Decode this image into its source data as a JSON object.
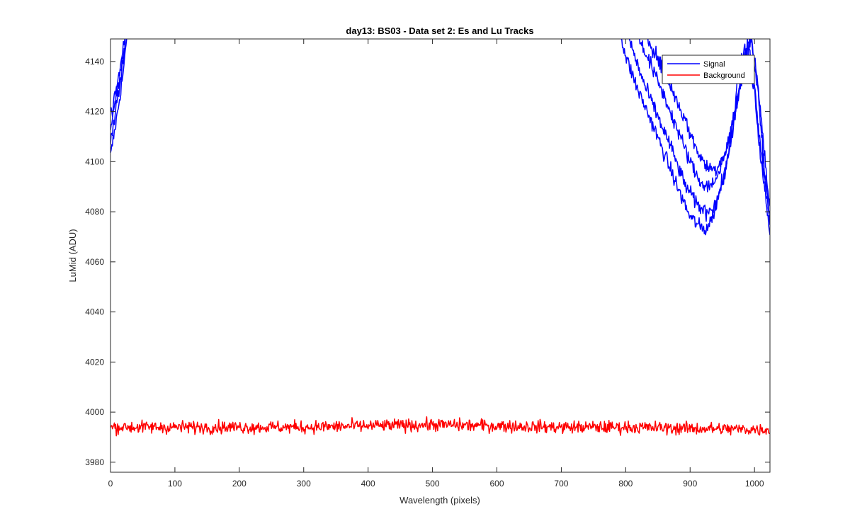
{
  "chart_data": {
    "type": "line",
    "title": "day13: BS03 - Data set 2: Es and Lu Tracks",
    "xlabel": "Wavelength (pixels)",
    "ylabel": "LuMid (ADU)",
    "xlim": [
      0,
      1024
    ],
    "ylim": [
      3976,
      4149
    ],
    "xticks": [
      0,
      100,
      200,
      300,
      400,
      500,
      600,
      700,
      800,
      900,
      1000
    ],
    "yticks": [
      3980,
      4000,
      4020,
      4040,
      4060,
      4080,
      4100,
      4120,
      4140
    ],
    "grid": false,
    "legend_position": "top-right",
    "series": [
      {
        "name": "Signal",
        "color": "#0000ff",
        "noise": 3,
        "tracks": [
          {
            "x": [
              0,
              5,
              10,
              15,
              20,
              25,
              28,
              780,
              800,
              820,
              840,
              860,
              880,
              900,
              915,
              925,
              935,
              950,
              965,
              975,
              985,
              1000,
              1010,
              1024
            ],
            "y": [
              4102,
              4110,
              4118,
              4127,
              4136,
              4148,
              4160,
              4165,
              4142,
              4128,
              4116,
              4103,
              4090,
              4078,
              4074,
              4073,
              4078,
              4092,
              4112,
              4135,
              4145,
              4128,
              4100,
              4072
            ]
          },
          {
            "x": [
              0,
              5,
              10,
              15,
              20,
              25,
              28,
              790,
              810,
              830,
              850,
              870,
              890,
              910,
              925,
              940,
              955,
              970,
              980,
              990,
              1000,
              1010,
              1024
            ],
            "y": [
              4108,
              4116,
              4124,
              4131,
              4140,
              4152,
              4162,
              4165,
              4145,
              4130,
              4118,
              4106,
              4092,
              4083,
              4080,
              4083,
              4096,
              4118,
              4136,
              4148,
              4130,
              4104,
              4076
            ]
          },
          {
            "x": [
              0,
              5,
              10,
              15,
              20,
              25,
              28,
              800,
              820,
              840,
              860,
              880,
              900,
              915,
              930,
              945,
              960,
              975,
              985,
              995,
              1005,
              1015,
              1024
            ],
            "y": [
              4113,
              4120,
              4127,
              4134,
              4143,
              4155,
              4163,
              4165,
              4150,
              4138,
              4126,
              4113,
              4100,
              4092,
              4090,
              4095,
              4108,
              4128,
              4142,
              4150,
              4128,
              4098,
              4079
            ]
          },
          {
            "x": [
              0,
              5,
              10,
              15,
              20,
              25,
              28,
              810,
              830,
              850,
              870,
              890,
              910,
              925,
              940,
              955,
              970,
              985,
              995,
              1005,
              1015,
              1024
            ],
            "y": [
              4118,
              4124,
              4130,
              4137,
              4146,
              4157,
              4165,
              4165,
              4152,
              4141,
              4130,
              4118,
              4105,
              4098,
              4097,
              4104,
              4120,
              4138,
              4150,
              4132,
              4104,
              4081
            ]
          }
        ]
      },
      {
        "name": "Background",
        "color": "#ff0000",
        "noise": 2.5,
        "tracks": [
          {
            "x": [
              0,
              100,
              200,
              300,
              400,
              500,
              600,
              700,
              800,
              900,
              1024
            ],
            "y": [
              3994,
              3994,
              3994,
              3994,
              3994.5,
              3995,
              3994.5,
              3994,
              3994,
              3993.5,
              3993
            ]
          }
        ]
      }
    ]
  }
}
